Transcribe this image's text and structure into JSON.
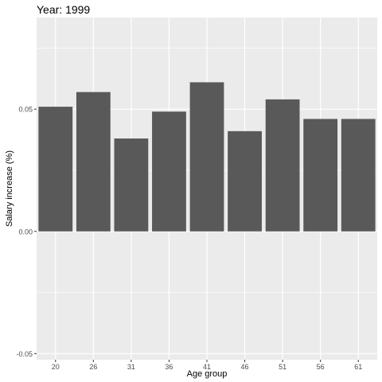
{
  "chart_data": {
    "type": "bar",
    "title": "Year: 1999",
    "xlabel": "Age group",
    "ylabel": "Salary increase (%)",
    "categories": [
      "20",
      "26",
      "31",
      "36",
      "41",
      "46",
      "51",
      "56",
      "61"
    ],
    "values": [
      0.051,
      0.057,
      0.038,
      0.049,
      0.061,
      0.041,
      0.054,
      0.046,
      0.046
    ],
    "yticks": [
      -0.05,
      0.0,
      0.05
    ],
    "ytick_labels": [
      "-0.05",
      "0.00",
      "0.05"
    ],
    "ylim": [
      -0.0525,
      0.0875
    ],
    "grid": true,
    "legend": "none",
    "colors": {
      "panel": "#ebebeb",
      "bar": "#595959",
      "grid_major": "#ffffff",
      "text": "#4d4d4d",
      "title_text": "#000000"
    }
  }
}
